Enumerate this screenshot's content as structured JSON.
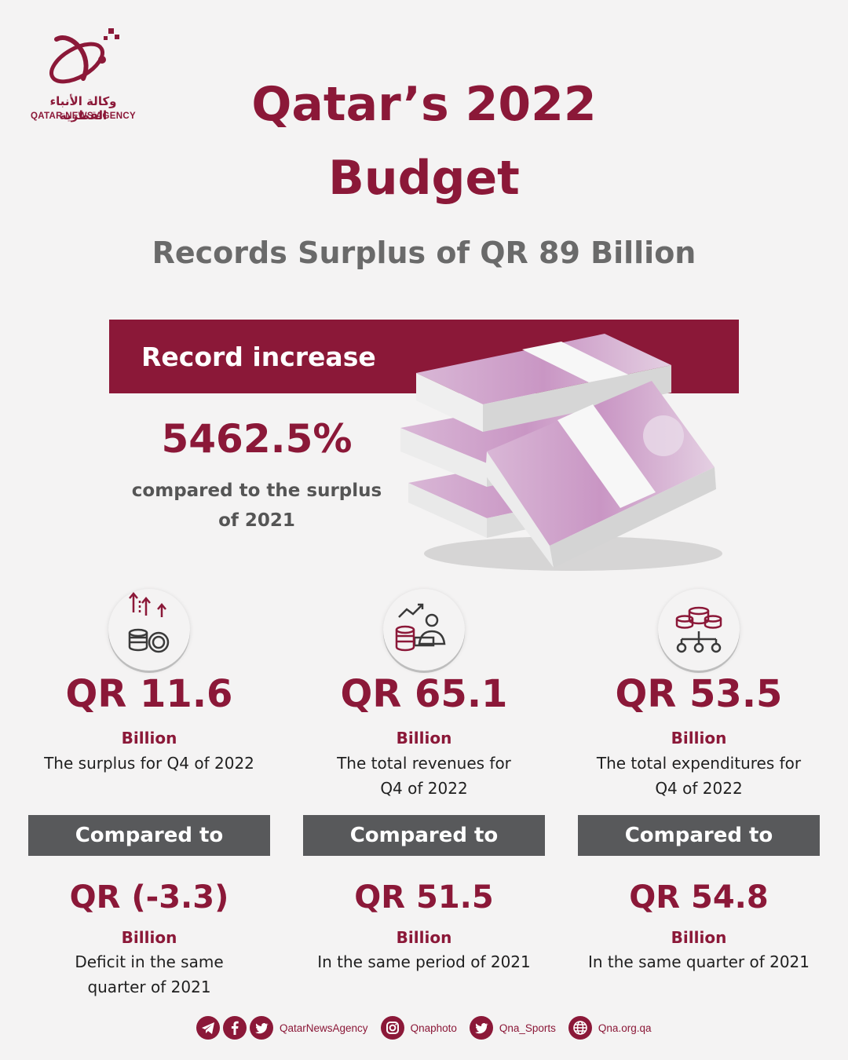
{
  "brand": {
    "name_ar": "وكالة الأنباء القطرية",
    "name_en": "QATAR NEWS AGENCY"
  },
  "header": {
    "title_line1": "Qatar’s 2022",
    "title_line2": "Budget",
    "subtitle": "Records Surplus of QR 89 Billion"
  },
  "record": {
    "label": "Record increase",
    "percent": "5462.5%",
    "desc_line1": "compared to the surplus",
    "desc_line2": "of 2021",
    "illustration": "banknote-stacks-image"
  },
  "columns": [
    {
      "icon": "coins-arrows-up-icon",
      "value": "QR 11.6",
      "unit": "Billion",
      "desc_line1": "The surplus for Q4 of 2022",
      "desc_line2": "",
      "compared_label": "Compared to",
      "prev_value": "QR (-3.3)",
      "prev_unit": "Billion",
      "prev_desc_line1": "Deficit in the same",
      "prev_desc_line2": "quarter of 2021"
    },
    {
      "icon": "coins-person-chart-icon",
      "value": "QR 65.1",
      "unit": "Billion",
      "desc_line1": "The total revenues for",
      "desc_line2": "Q4 of 2022",
      "compared_label": "Compared to",
      "prev_value": "QR 51.5",
      "prev_unit": "Billion",
      "prev_desc_line1": "In the same period of 2021",
      "prev_desc_line2": ""
    },
    {
      "icon": "coins-distribution-icon",
      "value": "QR 53.5",
      "unit": "Billion",
      "desc_line1": "The total expenditures for",
      "desc_line2": "Q4 of 2022",
      "compared_label": "Compared to",
      "prev_value": "QR 54.8",
      "prev_unit": "Billion",
      "prev_desc_line1": "In the same quarter of 2021",
      "prev_desc_line2": ""
    }
  ],
  "footer": {
    "handle1": "QatarNewsAgency",
    "handle2": "Qnaphoto",
    "handle3": "Qna_Sports",
    "website": "Qna.org.qa"
  },
  "colors": {
    "brand": "#8b1838",
    "dark_gray": "#58595b",
    "background": "#f4f3f3"
  }
}
